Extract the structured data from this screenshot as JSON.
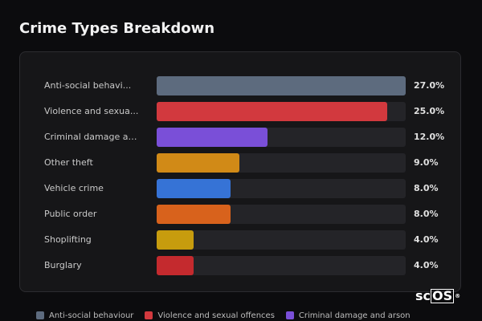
{
  "title": "Crime Types Breakdown",
  "brand": {
    "prefix": "sc",
    "boxed": "OS",
    "mark": "®"
  },
  "chart_data": {
    "type": "bar",
    "orientation": "horizontal",
    "title": "Crime Types Breakdown",
    "categories": [
      "Anti-social behaviour",
      "Violence and sexual offences",
      "Criminal damage and arson",
      "Other theft",
      "Vehicle crime",
      "Public order",
      "Shoplifting",
      "Burglary"
    ],
    "display_labels": [
      "Anti-social behavi...",
      "Violence and sexua...",
      "Criminal damage an...",
      "Other theft",
      "Vehicle crime",
      "Public order",
      "Shoplifting",
      "Burglary"
    ],
    "values": [
      27.0,
      25.0,
      12.0,
      9.0,
      8.0,
      8.0,
      4.0,
      4.0
    ],
    "value_labels": [
      "27.0%",
      "25.0%",
      "12.0%",
      "9.0%",
      "8.0%",
      "8.0%",
      "4.0%",
      "4.0%"
    ],
    "colors": [
      "#5d6b7e",
      "#d2393e",
      "#7a4fd8",
      "#d18a17",
      "#3673d6",
      "#d8621c",
      "#c79c0e",
      "#c42a2e"
    ],
    "max_value": 27.0,
    "legend": {
      "placement": "bottom",
      "entries": [
        {
          "label": "Anti-social behaviour",
          "color": "#5d6b7e"
        },
        {
          "label": "Violence and sexual offences",
          "color": "#d2393e"
        },
        {
          "label": "Criminal damage and arson",
          "color": "#7a4fd8"
        }
      ]
    }
  }
}
